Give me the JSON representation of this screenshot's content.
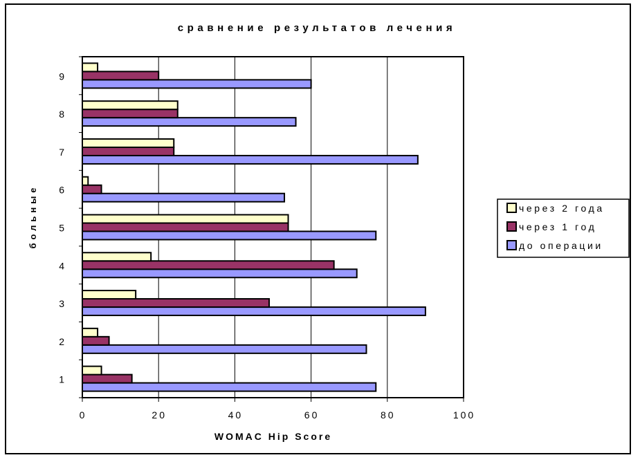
{
  "chart_data": {
    "type": "bar",
    "orientation": "horizontal",
    "title": "сравнение результатов лечения",
    "xlabel": "WOMAC Hip Score",
    "ylabel": "больные",
    "xlim": [
      0,
      100
    ],
    "xticks": [
      "0",
      "20",
      "40",
      "60",
      "80",
      "100"
    ],
    "categories": [
      "1",
      "2",
      "3",
      "4",
      "5",
      "6",
      "7",
      "8",
      "9"
    ],
    "series": [
      {
        "name": "до операции",
        "color": "#9999ff",
        "values": [
          77,
          74.5,
          90,
          72,
          77,
          53,
          88,
          56,
          60
        ]
      },
      {
        "name": "через 1 год",
        "color": "#993366",
        "values": [
          13,
          7,
          49,
          66,
          54,
          5,
          24,
          25,
          20
        ]
      },
      {
        "name": "через 2 года",
        "color": "#ffffcc",
        "values": [
          5,
          4,
          14,
          18,
          54,
          1.5,
          24,
          25,
          4
        ]
      }
    ],
    "legend_order": [
      "через 2 года",
      "через 1 год",
      "до операции"
    ],
    "legend_position": "right",
    "grid": "vertical"
  }
}
